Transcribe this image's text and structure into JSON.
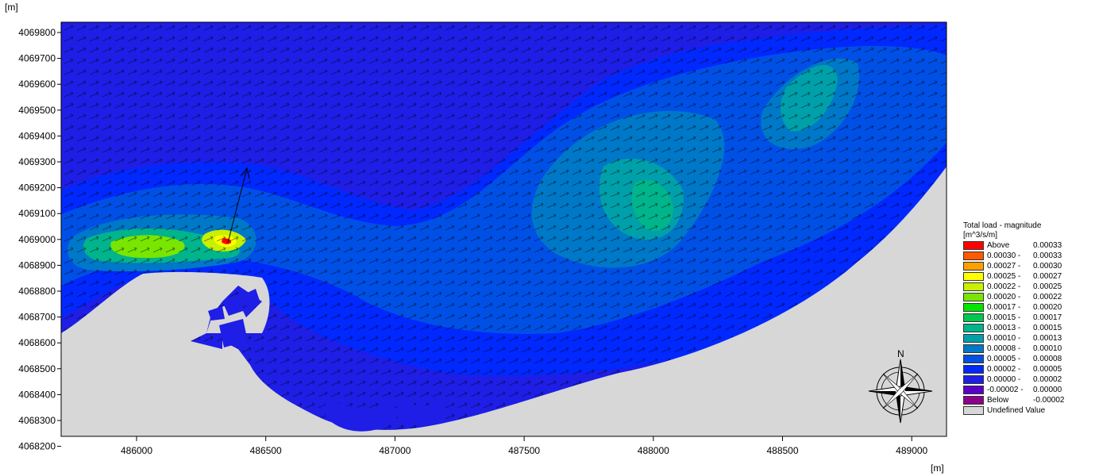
{
  "axes": {
    "y_unit": "[m]",
    "x_unit": "[m]",
    "y_ticks": [
      "4069800",
      "4069700",
      "4069600",
      "4069500",
      "4069400",
      "4069300",
      "4069200",
      "4069100",
      "4069000",
      "4068900",
      "4068800",
      "4068700",
      "4068600",
      "4068500",
      "4068400",
      "4068300",
      "4068200"
    ],
    "x_ticks": [
      "486000",
      "486500",
      "487000",
      "487500",
      "488000",
      "488500",
      "489000"
    ]
  },
  "legend": {
    "title": "Total load - magnitude",
    "unit": "[m^3/s/m]",
    "items": [
      {
        "label": "Above",
        "range": "0.00033",
        "color": "#ff0000"
      },
      {
        "label": "0.00030 -",
        "range": "0.00033",
        "color": "#ff5a00"
      },
      {
        "label": "0.00027 -",
        "range": "0.00030",
        "color": "#ffa000"
      },
      {
        "label": "0.00025 -",
        "range": "0.00027",
        "color": "#ffff00"
      },
      {
        "label": "0.00022 -",
        "range": "0.00025",
        "color": "#c8f000"
      },
      {
        "label": "0.00020 -",
        "range": "0.00022",
        "color": "#78e600"
      },
      {
        "label": "0.00017 -",
        "range": "0.00020",
        "color": "#00e600"
      },
      {
        "label": "0.00015 -",
        "range": "0.00017",
        "color": "#00c850"
      },
      {
        "label": "0.00013 -",
        "range": "0.00015",
        "color": "#00b48c"
      },
      {
        "label": "0.00010 -",
        "range": "0.00013",
        "color": "#00a0aa"
      },
      {
        "label": "0.00008 -",
        "range": "0.00010",
        "color": "#0078c8"
      },
      {
        "label": "0.00005 -",
        "range": "0.00008",
        "color": "#0050e6"
      },
      {
        "label": "0.00002 -",
        "range": "0.00005",
        "color": "#0028ff"
      },
      {
        "label": "0.00000 -",
        "range": "0.00002",
        "color": "#1e1ee6"
      },
      {
        "label": "-0.00002 -",
        "range": "0.00000",
        "color": "#5a00c8"
      },
      {
        "label": "Below",
        "range": "-0.00002",
        "color": "#8c008c"
      },
      {
        "label": "Undefined Value",
        "range": "",
        "color": "#d7d7d7"
      }
    ]
  },
  "compass": {
    "north_label": "N"
  }
}
